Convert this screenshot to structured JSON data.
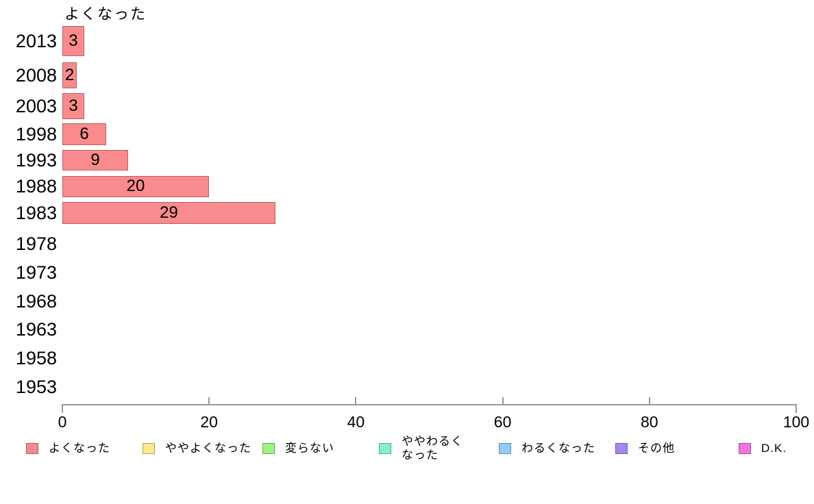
{
  "chart_data": {
    "type": "bar",
    "orientation": "horizontal",
    "title": "よくなった",
    "categories": [
      "2013",
      "2008",
      "2003",
      "1998",
      "1993",
      "1988",
      "1983",
      "1978",
      "1973",
      "1968",
      "1963",
      "1958",
      "1953"
    ],
    "values": [
      3,
      2,
      3,
      6,
      9,
      20,
      29,
      null,
      null,
      null,
      null,
      null,
      null
    ],
    "xlabel": "",
    "ylabel": "",
    "xlim": [
      0,
      100
    ],
    "x_ticks": [
      "0",
      "20",
      "40",
      "60",
      "80",
      "100"
    ],
    "grid": false,
    "legend_position": "bottom",
    "bar_color": "#F98A8D",
    "axis_color": "#999999",
    "value_label_color": "#000000",
    "legend": [
      {
        "label": "よくなった",
        "color": "#F58A8E"
      },
      {
        "label": "ややよくなった",
        "color": "#FBEA90"
      },
      {
        "label": "変らない",
        "color": "#9DF280"
      },
      {
        "label": "ややわるくなった",
        "color": "#81F2C1"
      },
      {
        "label": "わるくなった",
        "color": "#8FCDF8"
      },
      {
        "label": "その他",
        "color": "#A687F2"
      },
      {
        "label": "D.K.",
        "color": "#F272E2"
      }
    ]
  }
}
